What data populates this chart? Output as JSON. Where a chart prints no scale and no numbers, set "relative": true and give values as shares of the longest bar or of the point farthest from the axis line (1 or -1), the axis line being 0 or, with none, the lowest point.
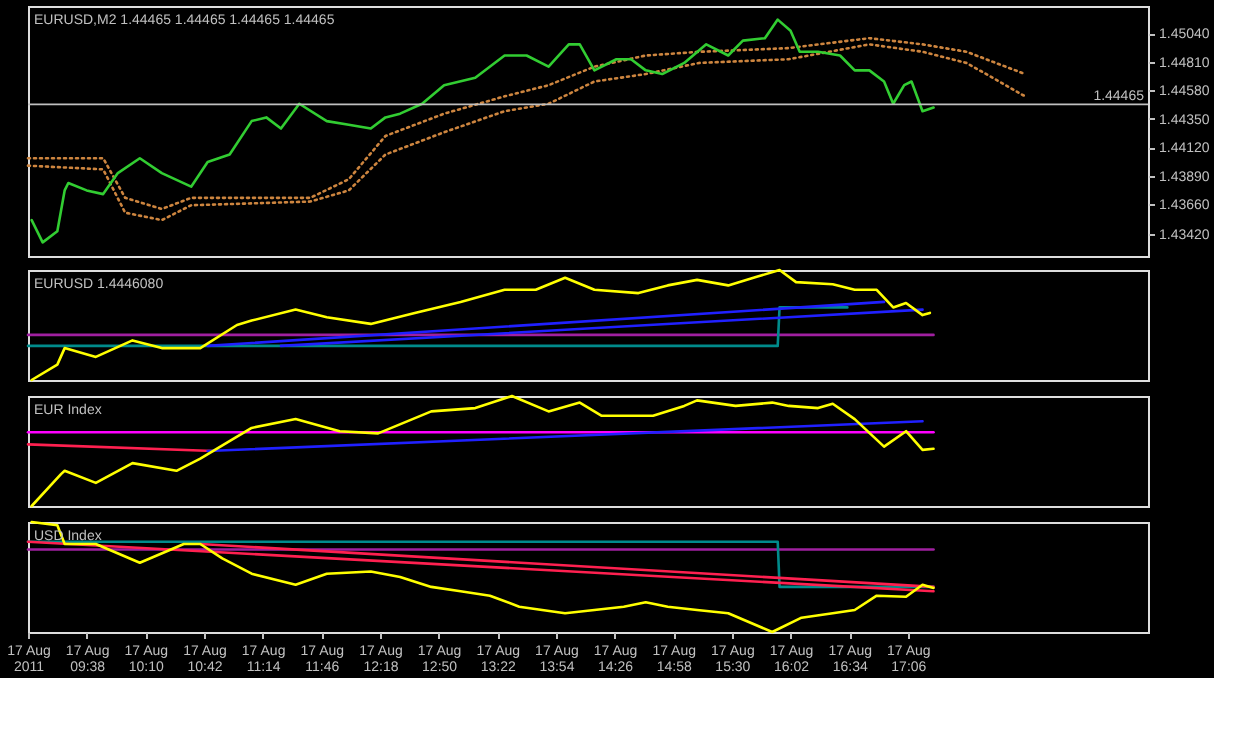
{
  "chart_data": [
    {
      "type": "line",
      "title": "EURUSD,M2  1.44465 1.44465 1.44465 1.44465",
      "xlim": [
        "2011-08-17T09:06",
        "2011-08-17T19:17"
      ],
      "ylim": [
        1.4324,
        1.4526
      ],
      "tick_labels": "y",
      "yticks": [
        {
          "value": 1.4342,
          "label": "1.43420"
        },
        {
          "value": 1.4366,
          "label": "1.43660"
        },
        {
          "value": 1.4389,
          "label": "1.43890"
        },
        {
          "value": 1.4412,
          "label": "1.44120"
        },
        {
          "value": 1.4435,
          "label": "1.44350"
        },
        {
          "value": 1.4458,
          "label": "1.44580"
        },
        {
          "value": 1.4481,
          "label": "1.44810"
        },
        {
          "value": 1.4504,
          "label": "1.45040"
        }
      ],
      "ref_lines": [
        {
          "axis": "y",
          "value": 1.44465,
          "label": "1.44465",
          "color": "#c0c0c0"
        }
      ],
      "series": [
        {
          "color": "#cd853f",
          "line_style": "dotted",
          "x": [
            "2011-08-17T09:06",
            "2011-08-17T09:47",
            "2011-08-17T09:59",
            "2011-08-17T10:19",
            "2011-08-17T10:35",
            "2011-08-17T11:40",
            "2011-08-17T12:01",
            "2011-08-17T12:21",
            "2011-08-17T12:53",
            "2011-08-17T13:26",
            "2011-08-17T13:50",
            "2011-08-17T14:15",
            "2011-08-17T14:43",
            "2011-08-17T15:12",
            "2011-08-17T16:01",
            "2011-08-17T16:45",
            "2011-08-17T17:14",
            "2011-08-17T17:38",
            "2011-08-17T18:10"
          ],
          "values": [
            1.4403,
            1.4403,
            1.4371,
            1.4362,
            1.4371,
            1.4371,
            1.4386,
            1.4421,
            1.4439,
            1.4453,
            1.4462,
            1.4477,
            1.4486,
            1.4489,
            1.4492,
            1.45,
            1.4495,
            1.4489,
            1.4471
          ]
        },
        {
          "color": "#cd853f",
          "line_style": "dotted",
          "x": [
            "2011-08-17T09:06",
            "2011-08-17T09:47",
            "2011-08-17T09:59",
            "2011-08-17T10:19",
            "2011-08-17T10:35",
            "2011-08-17T11:40",
            "2011-08-17T12:01",
            "2011-08-17T12:21",
            "2011-08-17T12:53",
            "2011-08-17T13:26",
            "2011-08-17T13:50",
            "2011-08-17T14:15",
            "2011-08-17T14:43",
            "2011-08-17T15:12",
            "2011-08-17T16:01",
            "2011-08-17T16:45",
            "2011-08-17T17:14",
            "2011-08-17T17:38",
            "2011-08-17T18:10"
          ],
          "values": [
            1.4397,
            1.4394,
            1.4359,
            1.4353,
            1.4365,
            1.4368,
            1.4377,
            1.4406,
            1.4424,
            1.4441,
            1.4447,
            1.4465,
            1.4471,
            1.448,
            1.4483,
            1.4495,
            1.4489,
            1.448,
            1.4453
          ]
        },
        {
          "color": "#32cd32",
          "line_style": "solid",
          "x": [
            "2011-08-17T09:08",
            "2011-08-17T09:14",
            "2011-08-17T09:22",
            "2011-08-17T09:26",
            "2011-08-17T09:28",
            "2011-08-17T09:38",
            "2011-08-17T09:47",
            "2011-08-17T09:55",
            "2011-08-17T10:07",
            "2011-08-17T10:19",
            "2011-08-17T10:35",
            "2011-08-17T10:44",
            "2011-08-17T10:56",
            "2011-08-17T11:08",
            "2011-08-17T11:16",
            "2011-08-17T11:24",
            "2011-08-17T11:34",
            "2011-08-17T11:49",
            "2011-08-17T12:01",
            "2011-08-17T12:13",
            "2011-08-17T12:21",
            "2011-08-17T12:29",
            "2011-08-17T12:41",
            "2011-08-17T12:53",
            "2011-08-17T13:10",
            "2011-08-17T13:26",
            "2011-08-17T13:38",
            "2011-08-17T13:50",
            "2011-08-17T14:01",
            "2011-08-17T14:07",
            "2011-08-17T14:15",
            "2011-08-17T14:27",
            "2011-08-17T14:35",
            "2011-08-17T14:43",
            "2011-08-17T14:52",
            "2011-08-17T15:04",
            "2011-08-17T15:16",
            "2011-08-17T15:28",
            "2011-08-17T15:36",
            "2011-08-17T15:48",
            "2011-08-17T15:55",
            "2011-08-17T16:02",
            "2011-08-17T16:07",
            "2011-08-17T16:17",
            "2011-08-17T16:29",
            "2011-08-17T16:37",
            "2011-08-17T16:45",
            "2011-08-17T16:53",
            "2011-08-17T16:58",
            "2011-08-17T17:04",
            "2011-08-17T17:08",
            "2011-08-17T17:14",
            "2011-08-17T17:20"
          ],
          "values": [
            1.4353,
            1.4335,
            1.4344,
            1.4377,
            1.4383,
            1.4377,
            1.4374,
            1.4391,
            1.4403,
            1.4391,
            1.438,
            1.44,
            1.4406,
            1.4433,
            1.4436,
            1.4427,
            1.4447,
            1.4433,
            1.443,
            1.4427,
            1.4436,
            1.4439,
            1.4447,
            1.4462,
            1.4468,
            1.4486,
            1.4486,
            1.4477,
            1.4495,
            1.4495,
            1.4474,
            1.4483,
            1.4483,
            1.4474,
            1.4471,
            1.448,
            1.4495,
            1.4486,
            1.4498,
            1.45,
            1.4515,
            1.4506,
            1.4489,
            1.4489,
            1.4486,
            1.4474,
            1.4474,
            1.4465,
            1.4447,
            1.4462,
            1.4465,
            1.4441,
            1.4444
          ]
        }
      ]
    },
    {
      "type": "line",
      "title": "EURUSD 1.4446080",
      "relative": true,
      "xlim": [
        "2011-08-17T09:06",
        "2011-08-17T19:17"
      ],
      "tick_labels": false,
      "series": [
        {
          "color": "#a020a0",
          "x": [
            "2011-08-17T09:06",
            "2011-08-17T17:20"
          ],
          "values": [
            0.41,
            0.41
          ]
        },
        {
          "color": "#008b8b",
          "x": [
            "2011-08-17T09:06",
            "2011-08-17T15:55",
            "2011-08-17T15:56",
            "2011-08-17T16:33"
          ],
          "values": [
            0.31,
            0.31,
            0.66,
            0.66
          ]
        },
        {
          "color": "#2020ff",
          "x": [
            "2011-08-17T10:44",
            "2011-08-17T16:53"
          ],
          "values": [
            0.31,
            0.71
          ]
        },
        {
          "color": "#2020ff",
          "x": [
            "2011-08-17T11:24",
            "2011-08-17T17:14"
          ],
          "values": [
            0.31,
            0.64
          ]
        },
        {
          "color": "#ffff00",
          "x": [
            "2011-08-17T09:08",
            "2011-08-17T09:22",
            "2011-08-17T09:26",
            "2011-08-17T09:43",
            "2011-08-17T10:03",
            "2011-08-17T10:19",
            "2011-08-17T10:40",
            "2011-08-17T11:00",
            "2011-08-17T11:08",
            "2011-08-17T11:32",
            "2011-08-17T11:49",
            "2011-08-17T12:13",
            "2011-08-17T12:37",
            "2011-08-17T13:02",
            "2011-08-17T13:26",
            "2011-08-17T13:43",
            "2011-08-17T13:59",
            "2011-08-17T14:15",
            "2011-08-17T14:39",
            "2011-08-17T14:55",
            "2011-08-17T15:11",
            "2011-08-17T15:28",
            "2011-08-17T15:44",
            "2011-08-17T15:56",
            "2011-08-17T16:05",
            "2011-08-17T16:25",
            "2011-08-17T16:37",
            "2011-08-17T16:49",
            "2011-08-17T16:58",
            "2011-08-17T17:05",
            "2011-08-17T17:14",
            "2011-08-17T17:18"
          ],
          "values": [
            0.0,
            0.14,
            0.29,
            0.21,
            0.36,
            0.29,
            0.29,
            0.5,
            0.54,
            0.64,
            0.57,
            0.51,
            0.61,
            0.71,
            0.82,
            0.82,
            0.93,
            0.82,
            0.79,
            0.86,
            0.91,
            0.86,
            0.94,
            1.0,
            0.89,
            0.87,
            0.82,
            0.82,
            0.66,
            0.7,
            0.59,
            0.61
          ]
        }
      ]
    },
    {
      "type": "line",
      "title": "EUR Index",
      "relative": true,
      "xlim": [
        "2011-08-17T09:06",
        "2011-08-17T19:17"
      ],
      "tick_labels": false,
      "series": [
        {
          "color": "#ff00ff",
          "x": [
            "2011-08-17T09:06",
            "2011-08-17T17:20"
          ],
          "values": [
            0.67,
            0.67
          ]
        },
        {
          "color": "#ff2050",
          "x": [
            "2011-08-17T09:06",
            "2011-08-17T10:47"
          ],
          "values": [
            0.56,
            0.5
          ]
        },
        {
          "color": "#2020ff",
          "x": [
            "2011-08-17T10:44",
            "2011-08-17T17:14"
          ],
          "values": [
            0.5,
            0.77
          ]
        },
        {
          "color": "#ffff00",
          "x": [
            "2011-08-17T09:08",
            "2011-08-17T09:24",
            "2011-08-17T09:26",
            "2011-08-17T09:43",
            "2011-08-17T10:03",
            "2011-08-17T10:27",
            "2011-08-17T10:40",
            "2011-08-17T11:08",
            "2011-08-17T11:32",
            "2011-08-17T11:56",
            "2011-08-17T12:17",
            "2011-08-17T12:46",
            "2011-08-17T13:10",
            "2011-08-17T13:30",
            "2011-08-17T13:50",
            "2011-08-17T14:07",
            "2011-08-17T14:19",
            "2011-08-17T14:47",
            "2011-08-17T15:04",
            "2011-08-17T15:11",
            "2011-08-17T15:32",
            "2011-08-17T15:52",
            "2011-08-17T16:01",
            "2011-08-17T16:17",
            "2011-08-17T16:25",
            "2011-08-17T16:37",
            "2011-08-17T16:53",
            "2011-08-17T17:05",
            "2011-08-17T17:14",
            "2011-08-17T17:20"
          ],
          "values": [
            0.0,
            0.29,
            0.32,
            0.21,
            0.39,
            0.32,
            0.43,
            0.71,
            0.79,
            0.68,
            0.66,
            0.86,
            0.89,
            1.0,
            0.86,
            0.94,
            0.82,
            0.82,
            0.91,
            0.96,
            0.91,
            0.94,
            0.91,
            0.89,
            0.93,
            0.79,
            0.54,
            0.68,
            0.51,
            0.52
          ]
        }
      ]
    },
    {
      "type": "line",
      "title": "USD Index",
      "relative": true,
      "xlim": [
        "2011-08-17T09:06",
        "2011-08-17T19:17"
      ],
      "tick_labels": "x",
      "xticks": [
        {
          "value": "2011-08-17T09:06",
          "label": "17 Aug 2011"
        },
        {
          "value": "2011-08-17T09:38",
          "label": "17 Aug 09:38"
        },
        {
          "value": "2011-08-17T10:10",
          "label": "17 Aug 10:10"
        },
        {
          "value": "2011-08-17T10:42",
          "label": "17 Aug 10:42"
        },
        {
          "value": "2011-08-17T11:14",
          "label": "17 Aug 11:14"
        },
        {
          "value": "2011-08-17T11:46",
          "label": "17 Aug 11:46"
        },
        {
          "value": "2011-08-17T12:18",
          "label": "17 Aug 12:18"
        },
        {
          "value": "2011-08-17T12:50",
          "label": "17 Aug 12:50"
        },
        {
          "value": "2011-08-17T13:22",
          "label": "17 Aug 13:22"
        },
        {
          "value": "2011-08-17T13:54",
          "label": "17 Aug 13:54"
        },
        {
          "value": "2011-08-17T14:26",
          "label": "17 Aug 14:26"
        },
        {
          "value": "2011-08-17T14:58",
          "label": "17 Aug 14:58"
        },
        {
          "value": "2011-08-17T15:30",
          "label": "17 Aug 15:30"
        },
        {
          "value": "2011-08-17T16:02",
          "label": "17 Aug 16:02"
        },
        {
          "value": "2011-08-17T16:34",
          "label": "17 Aug 16:34"
        },
        {
          "value": "2011-08-17T17:06",
          "label": "17 Aug 17:06"
        }
      ],
      "series": [
        {
          "color": "#a020a0",
          "x": [
            "2011-08-17T09:06",
            "2011-08-17T17:20"
          ],
          "values": [
            0.75,
            0.75
          ]
        },
        {
          "color": "#008b8b",
          "x": [
            "2011-08-17T09:06",
            "2011-08-17T15:55",
            "2011-08-17T15:56",
            "2011-08-17T17:20"
          ],
          "values": [
            0.82,
            0.82,
            0.41,
            0.41
          ]
        },
        {
          "color": "#ff2050",
          "x": [
            "2011-08-17T09:06",
            "2011-08-17T17:20"
          ],
          "values": [
            0.82,
            0.37
          ]
        },
        {
          "color": "#ff2050",
          "x": [
            "2011-08-17T10:40",
            "2011-08-17T17:20"
          ],
          "values": [
            0.8,
            0.41
          ]
        },
        {
          "color": "#ffff00",
          "x": [
            "2011-08-17T09:08",
            "2011-08-17T09:22",
            "2011-08-17T09:26",
            "2011-08-17T09:43",
            "2011-08-17T10:07",
            "2011-08-17T10:31",
            "2011-08-17T10:40",
            "2011-08-17T10:52",
            "2011-08-17T11:08",
            "2011-08-17T11:32",
            "2011-08-17T11:49",
            "2011-08-17T12:13",
            "2011-08-17T12:29",
            "2011-08-17T12:46",
            "2011-08-17T13:02",
            "2011-08-17T13:18",
            "2011-08-17T13:34",
            "2011-08-17T13:59",
            "2011-08-17T14:15",
            "2011-08-17T14:31",
            "2011-08-17T14:43",
            "2011-08-17T14:55",
            "2011-08-17T15:11",
            "2011-08-17T15:28",
            "2011-08-17T15:52",
            "2011-08-17T16:08",
            "2011-08-17T16:25",
            "2011-08-17T16:37",
            "2011-08-17T16:49",
            "2011-08-17T17:05",
            "2011-08-17T17:14",
            "2011-08-17T17:20"
          ],
          "values": [
            1.0,
            0.97,
            0.8,
            0.8,
            0.63,
            0.8,
            0.8,
            0.67,
            0.53,
            0.43,
            0.53,
            0.55,
            0.5,
            0.41,
            0.37,
            0.33,
            0.23,
            0.17,
            0.2,
            0.23,
            0.27,
            0.23,
            0.2,
            0.17,
            0.0,
            0.13,
            0.17,
            0.2,
            0.33,
            0.32,
            0.43,
            0.4
          ]
        }
      ]
    }
  ]
}
